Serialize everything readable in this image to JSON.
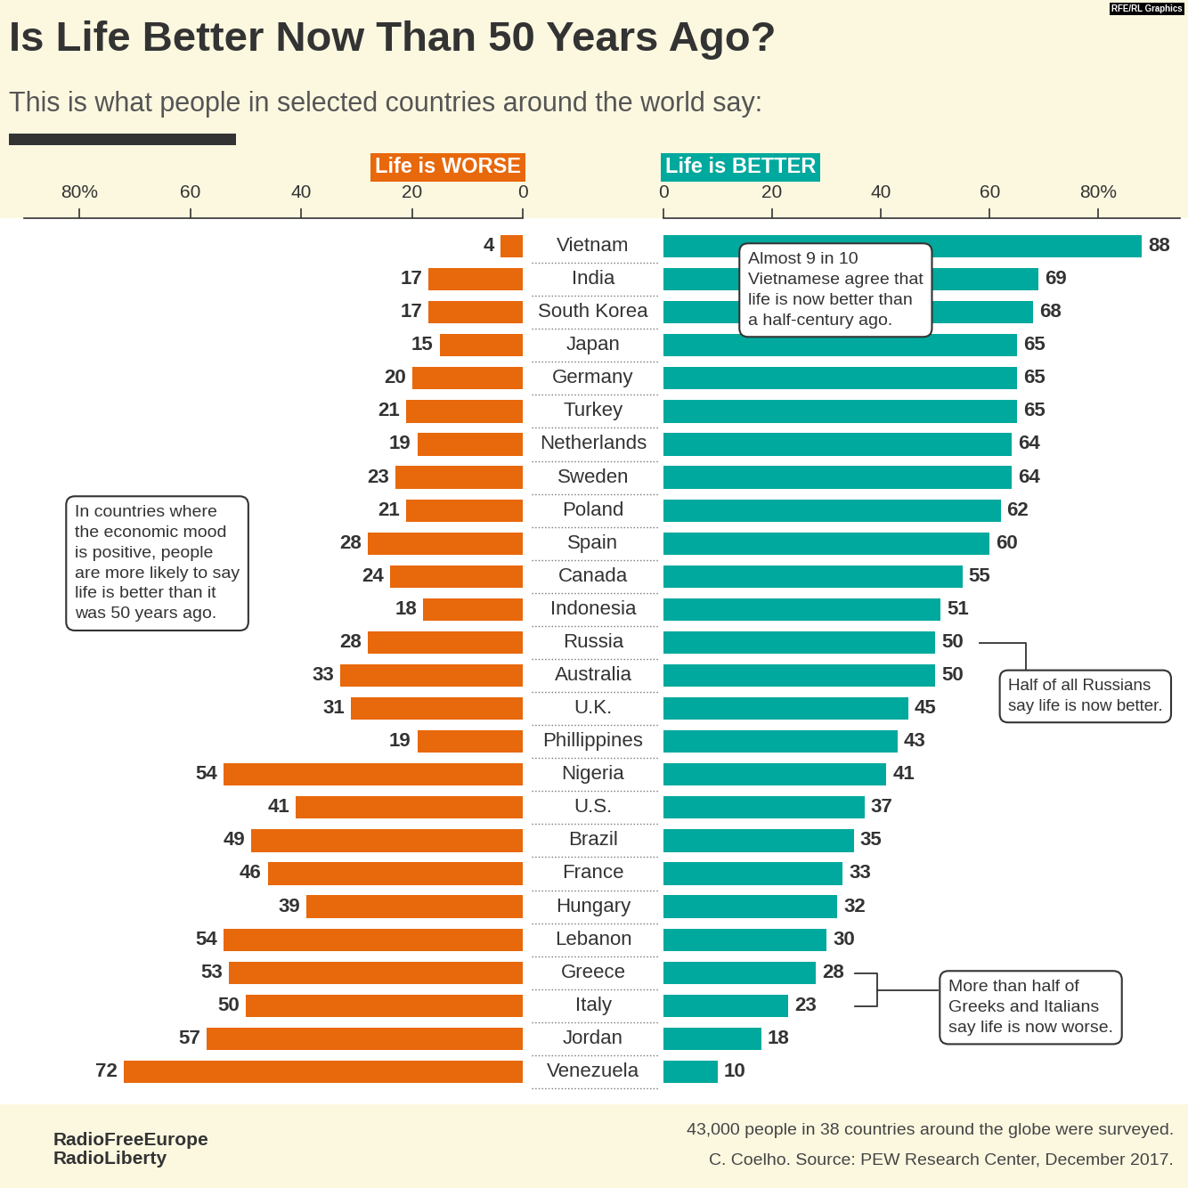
{
  "title": "Is Life Better Now Than 50 Years Ago?",
  "subtitle": "This is what people in selected countries around the world say:",
  "footer": {
    "survey": "43,000 people in 38 countries around the globe were surveyed.",
    "credit": "C. Coelho. Source: PEW Research Center, December 2017.",
    "logo": "RadioFreeEurope\nRadioLiberty",
    "badge": "RFE/RL Graphics"
  },
  "chart_data": [
    {
      "type": "bar",
      "orientation": "horizontal",
      "title": "Life is WORSE",
      "categories": [
        "Vietnam",
        "India",
        "South Korea",
        "Japan",
        "Germany",
        "Turkey",
        "Netherlands",
        "Sweden",
        "Poland",
        "Spain",
        "Canada",
        "Indonesia",
        "Russia",
        "Australia",
        "U.K.",
        "Phillippines",
        "Nigeria",
        "U.S.",
        "Brazil",
        "France",
        "Hungary",
        "Lebanon",
        "Greece",
        "Italy",
        "Jordan",
        "Venezuela"
      ],
      "values": [
        4,
        17,
        17,
        15,
        20,
        21,
        19,
        23,
        21,
        28,
        24,
        18,
        28,
        33,
        31,
        19,
        54,
        41,
        49,
        46,
        39,
        54,
        53,
        50,
        57,
        72
      ],
      "color": "#e8680c",
      "xlim": [
        0,
        90
      ],
      "xticks": [
        {
          "value": 80,
          "label": "80%"
        },
        60,
        40,
        20,
        0
      ],
      "data_labels": true,
      "tick_labels": "x",
      "annotations": [
        "In countries where\nthe economic mood\nis positive, people\nare more likely to say\nlife is better than it\nwas 50 years ago."
      ]
    },
    {
      "type": "bar",
      "orientation": "horizontal",
      "title": "Life is BETTER",
      "categories": [
        "Vietnam",
        "India",
        "South Korea",
        "Japan",
        "Germany",
        "Turkey",
        "Netherlands",
        "Sweden",
        "Poland",
        "Spain",
        "Canada",
        "Indonesia",
        "Russia",
        "Australia",
        "U.K.",
        "Phillippines",
        "Nigeria",
        "U.S.",
        "Brazil",
        "France",
        "Hungary",
        "Lebanon",
        "Greece",
        "Italy",
        "Jordan",
        "Venezuela"
      ],
      "values": [
        88,
        69,
        68,
        65,
        65,
        65,
        64,
        64,
        62,
        60,
        55,
        51,
        50,
        50,
        45,
        43,
        41,
        37,
        35,
        33,
        32,
        30,
        28,
        23,
        18,
        10
      ],
      "color": "#00a99d",
      "xlim": [
        0,
        95
      ],
      "xticks": [
        0,
        20,
        40,
        60,
        {
          "value": 80,
          "label": "80%"
        }
      ],
      "data_labels": true,
      "tick_labels": "x",
      "annotations": [
        "Almost 9 in 10\nVietnamese agree that\nlife is now better than\na half-century ago.",
        "Half of all Russians\nsay life is now better.",
        "More than half of\nGreeks and Italians\nsay life is now worse."
      ]
    }
  ]
}
